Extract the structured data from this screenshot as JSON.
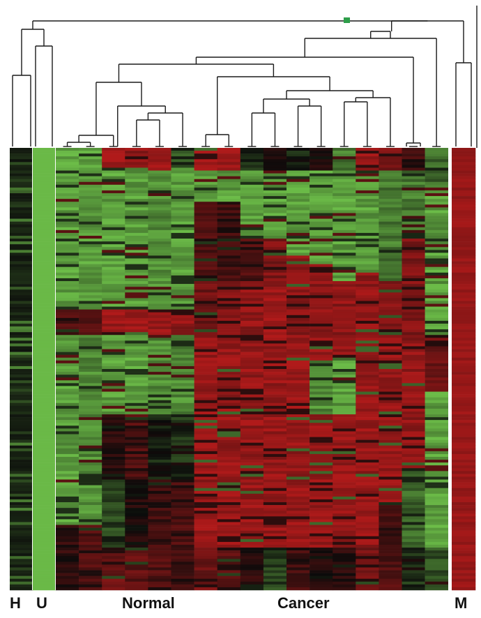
{
  "chart_data": {
    "type": "heatmap",
    "title": "",
    "xlabel": "",
    "ylabel": "",
    "colors": {
      "high": "#b01a1a",
      "mid": "#0a0a0a",
      "low": "#6fc24a",
      "node": "#2e9e4a"
    },
    "groups": [
      {
        "label": "H",
        "columns": 1
      },
      {
        "label": "U",
        "columns": 1
      },
      {
        "label": "Normal",
        "columns": 6
      },
      {
        "label": "Cancer",
        "columns": 11
      },
      {
        "label": "M",
        "columns": 1
      }
    ],
    "column_count": 20,
    "row_count": 156,
    "columns": [
      {
        "group": "H",
        "bands": [
          [
            0,
            1,
            -0.6
          ]
        ]
      },
      {
        "group": "U",
        "bands": [
          [
            0,
            1,
            -1
          ]
        ]
      },
      {
        "group": "Normal",
        "bands": [
          [
            0,
            0.36,
            -0.8
          ],
          [
            0.36,
            0.42,
            0.4
          ],
          [
            0.42,
            0.85,
            -0.8
          ],
          [
            0.85,
            1,
            0.2
          ]
        ]
      },
      {
        "group": "Normal",
        "bands": [
          [
            0,
            0.36,
            -0.8
          ],
          [
            0.36,
            0.42,
            0.5
          ],
          [
            0.42,
            0.85,
            -0.7
          ],
          [
            0.85,
            1,
            0.4
          ]
        ]
      },
      {
        "group": "Normal",
        "bands": [
          [
            0,
            0.04,
            0.9
          ],
          [
            0.04,
            0.36,
            -0.8
          ],
          [
            0.36,
            0.42,
            0.9
          ],
          [
            0.42,
            0.6,
            -0.8
          ],
          [
            0.6,
            0.75,
            0.2
          ],
          [
            0.75,
            0.9,
            -0.3
          ],
          [
            0.9,
            1,
            0.6
          ]
        ]
      },
      {
        "group": "Normal",
        "bands": [
          [
            0,
            0.04,
            0.8
          ],
          [
            0.04,
            0.36,
            -0.8
          ],
          [
            0.36,
            0.42,
            0.9
          ],
          [
            0.42,
            0.6,
            -0.8
          ],
          [
            0.6,
            0.75,
            0.4
          ],
          [
            0.75,
            0.9,
            0.1
          ],
          [
            0.9,
            1,
            0.5
          ]
        ]
      },
      {
        "group": "Normal",
        "bands": [
          [
            0,
            0.05,
            0.9
          ],
          [
            0.05,
            0.36,
            -0.7
          ],
          [
            0.36,
            0.42,
            0.9
          ],
          [
            0.42,
            0.6,
            -0.7
          ],
          [
            0.6,
            0.75,
            -0.1
          ],
          [
            0.75,
            0.9,
            0.3
          ],
          [
            0.9,
            1,
            0.4
          ]
        ]
      },
      {
        "group": "Normal",
        "bands": [
          [
            0,
            0.04,
            -0.4
          ],
          [
            0.04,
            0.36,
            -0.8
          ],
          [
            0.36,
            0.42,
            0.8
          ],
          [
            0.42,
            0.6,
            -0.7
          ],
          [
            0.6,
            0.75,
            -0.2
          ],
          [
            0.75,
            0.9,
            0.4
          ],
          [
            0.9,
            1,
            0.3
          ]
        ]
      },
      {
        "group": "Cancer",
        "bands": [
          [
            0,
            0.05,
            0.9
          ],
          [
            0.05,
            0.12,
            -0.8
          ],
          [
            0.12,
            0.3,
            0.4
          ],
          [
            0.3,
            0.42,
            0.6
          ],
          [
            0.42,
            0.9,
            0.85
          ],
          [
            0.9,
            1,
            0.6
          ]
        ]
      },
      {
        "group": "Cancer",
        "bands": [
          [
            0,
            0.05,
            0.9
          ],
          [
            0.05,
            0.12,
            -0.8
          ],
          [
            0.12,
            0.3,
            0.3
          ],
          [
            0.3,
            0.42,
            0.7
          ],
          [
            0.42,
            0.9,
            0.85
          ],
          [
            0.9,
            1,
            0.5
          ]
        ]
      },
      {
        "group": "Cancer",
        "bands": [
          [
            0,
            0.05,
            -0.2
          ],
          [
            0.05,
            0.2,
            -0.8
          ],
          [
            0.2,
            0.3,
            0.4
          ],
          [
            0.3,
            0.42,
            0.8
          ],
          [
            0.42,
            0.9,
            0.85
          ],
          [
            0.9,
            1,
            0.2
          ]
        ]
      },
      {
        "group": "Cancer",
        "bands": [
          [
            0,
            0.05,
            0.2
          ],
          [
            0.05,
            0.2,
            -0.8
          ],
          [
            0.2,
            0.32,
            0.7
          ],
          [
            0.32,
            0.42,
            0.9
          ],
          [
            0.42,
            0.9,
            0.85
          ],
          [
            0.9,
            1,
            -0.3
          ]
        ]
      },
      {
        "group": "Cancer",
        "bands": [
          [
            0,
            0.05,
            -0.1
          ],
          [
            0.05,
            0.24,
            -0.8
          ],
          [
            0.24,
            0.42,
            0.8
          ],
          [
            0.42,
            0.9,
            0.85
          ],
          [
            0.9,
            1,
            0.3
          ]
        ]
      },
      {
        "group": "Cancer",
        "bands": [
          [
            0,
            0.05,
            0.1
          ],
          [
            0.05,
            0.26,
            -0.8
          ],
          [
            0.26,
            0.42,
            0.8
          ],
          [
            0.42,
            0.48,
            0.85
          ],
          [
            0.48,
            0.6,
            -0.7
          ],
          [
            0.6,
            0.9,
            0.85
          ],
          [
            0.9,
            1,
            0.1
          ]
        ]
      },
      {
        "group": "Cancer",
        "bands": [
          [
            0,
            0.05,
            -0.6
          ],
          [
            0.05,
            0.3,
            -0.8
          ],
          [
            0.3,
            0.42,
            0.8
          ],
          [
            0.42,
            0.48,
            0.85
          ],
          [
            0.48,
            0.6,
            -0.8
          ],
          [
            0.6,
            0.9,
            0.85
          ],
          [
            0.9,
            1,
            0.2
          ]
        ]
      },
      {
        "group": "Cancer",
        "bands": [
          [
            0,
            0.05,
            0.9
          ],
          [
            0.05,
            0.28,
            -0.8
          ],
          [
            0.28,
            0.42,
            0.8
          ],
          [
            0.42,
            0.9,
            0.85
          ],
          [
            0.9,
            1,
            0.6
          ]
        ]
      },
      {
        "group": "Cancer",
        "bands": [
          [
            0,
            0.05,
            0.7
          ],
          [
            0.05,
            0.3,
            -0.6
          ],
          [
            0.3,
            0.42,
            0.7
          ],
          [
            0.42,
            0.8,
            0.85
          ],
          [
            0.8,
            0.9,
            0.3
          ],
          [
            0.9,
            1,
            0.4
          ]
        ]
      },
      {
        "group": "Cancer",
        "bands": [
          [
            0,
            0.05,
            0.3
          ],
          [
            0.05,
            0.2,
            -0.6
          ],
          [
            0.2,
            0.42,
            0.7
          ],
          [
            0.42,
            0.72,
            0.8
          ],
          [
            0.72,
            0.9,
            -0.5
          ],
          [
            0.9,
            1,
            -0.2
          ]
        ]
      },
      {
        "group": "Cancer",
        "bands": [
          [
            0,
            0.08,
            -0.5
          ],
          [
            0.08,
            0.42,
            -0.8
          ],
          [
            0.42,
            0.55,
            0.6
          ],
          [
            0.55,
            0.9,
            -0.8
          ],
          [
            0.9,
            1,
            -0.4
          ]
        ]
      },
      {
        "group": "M",
        "bands": [
          [
            0,
            1,
            0.85
          ]
        ]
      }
    ]
  }
}
